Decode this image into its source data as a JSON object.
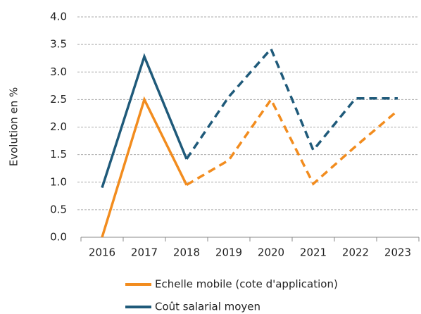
{
  "chart_data": {
    "type": "line",
    "y_label": "Evolution en %",
    "categories": [
      "2016",
      "2017",
      "2018",
      "2019",
      "2020",
      "2021",
      "2022",
      "2023"
    ],
    "series": [
      {
        "name": "Echelle mobile (cote d'application)",
        "color": "#f28c1e",
        "values": [
          0,
          2.5,
          0.95,
          1.4,
          2.5,
          0.97,
          1.65,
          2.3
        ]
      },
      {
        "name": "Coût salarial moyen",
        "color": "#1f5a7a",
        "values": [
          0.9,
          3.28,
          1.42,
          2.55,
          3.42,
          1.58,
          2.52,
          2.52
        ]
      }
    ],
    "dashed_from": "2018",
    "ylim": [
      0,
      4
    ],
    "yticks": [
      {
        "value": 0,
        "label": "0.0"
      },
      0.5,
      {
        "value": 1,
        "label": "1.0"
      },
      1.5,
      {
        "value": 2,
        "label": "2.0"
      },
      2.5,
      {
        "value": 3,
        "label": "3.0"
      },
      3.5,
      {
        "value": 4,
        "label": "4.0"
      }
    ],
    "grid": true
  }
}
